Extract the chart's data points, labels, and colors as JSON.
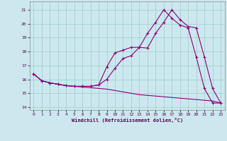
{
  "xlabel": "Windchill (Refroidissement éolien,°C)",
  "bg_color": "#cce8ee",
  "line_color": "#880077",
  "grid_color": "#99cccc",
  "xlim": [
    -0.5,
    23.5
  ],
  "ylim": [
    13.8,
    21.6
  ],
  "yticks": [
    14,
    15,
    16,
    17,
    18,
    19,
    20,
    21
  ],
  "xticks": [
    0,
    1,
    2,
    3,
    4,
    5,
    6,
    7,
    8,
    9,
    10,
    11,
    12,
    13,
    14,
    15,
    16,
    17,
    18,
    19,
    20,
    21,
    22,
    23
  ],
  "line1_x": [
    0,
    1,
    2,
    3,
    4,
    5,
    6,
    7,
    8,
    9,
    10,
    11,
    12,
    13,
    14,
    15,
    16,
    17,
    18,
    19,
    20,
    21,
    22,
    23
  ],
  "line1_y": [
    16.4,
    15.9,
    15.75,
    15.65,
    15.55,
    15.5,
    15.45,
    15.4,
    15.35,
    15.3,
    15.2,
    15.1,
    15.0,
    14.9,
    14.85,
    14.8,
    14.75,
    14.7,
    14.65,
    14.6,
    14.55,
    14.5,
    14.45,
    14.3
  ],
  "line2_x": [
    0,
    1,
    2,
    3,
    4,
    5,
    6,
    7,
    8,
    9,
    10,
    11,
    12,
    13,
    14,
    15,
    16,
    17,
    18,
    19,
    20,
    21,
    22,
    23
  ],
  "line2_y": [
    16.4,
    15.9,
    15.75,
    15.65,
    15.55,
    15.5,
    15.5,
    15.5,
    15.6,
    16.0,
    16.8,
    17.5,
    17.7,
    18.3,
    18.25,
    19.3,
    20.1,
    21.0,
    20.3,
    19.8,
    19.7,
    17.6,
    15.35,
    14.3
  ],
  "line3_x": [
    0,
    1,
    2,
    3,
    4,
    5,
    6,
    7,
    8,
    9,
    10,
    11,
    12,
    13,
    14,
    15,
    16,
    17,
    18,
    19,
    20,
    21,
    22,
    23
  ],
  "line3_y": [
    16.4,
    15.9,
    15.75,
    15.65,
    15.55,
    15.5,
    15.5,
    15.5,
    15.6,
    16.9,
    17.9,
    18.1,
    18.3,
    18.3,
    19.3,
    20.1,
    21.0,
    20.4,
    19.9,
    19.7,
    17.6,
    15.35,
    14.3,
    14.3
  ]
}
